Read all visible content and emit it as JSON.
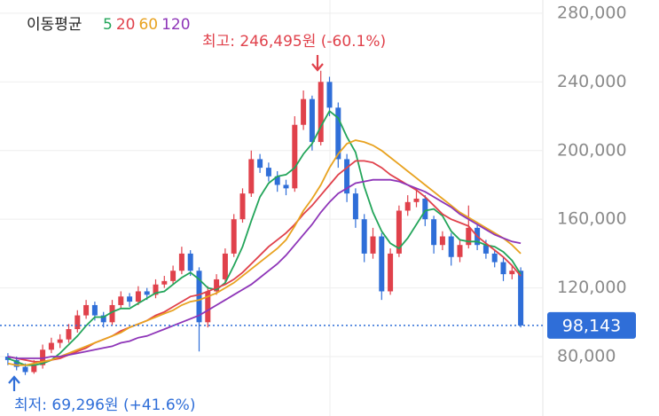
{
  "chart_data": {
    "type": "candlestick",
    "legend_title": "이동평균",
    "ylim": [
      45400,
      287700
    ],
    "yticks": [
      {
        "value": 80000,
        "label": "80,000"
      },
      {
        "value": 120000,
        "label": "120,000"
      },
      {
        "value": 160000,
        "label": "160,000"
      },
      {
        "value": 200000,
        "label": "200,000"
      },
      {
        "value": 240000,
        "label": "240,000"
      },
      {
        "value": 280000,
        "label": "280,000"
      }
    ],
    "grid": true,
    "up_color": "#e0414b",
    "down_color": "#2f6ed8",
    "open": [
      80000,
      78000,
      74000,
      71000,
      75000,
      84000,
      88000,
      90000,
      96000,
      104000,
      110000,
      104000,
      100000,
      110000,
      115000,
      112000,
      118000,
      116000,
      122000,
      124000,
      130000,
      140000,
      130000,
      100000,
      118000,
      125000,
      140000,
      160000,
      175000,
      195000,
      190000,
      185000,
      180000,
      178000,
      215000,
      230000,
      205000,
      240000,
      225000,
      195000,
      175000,
      160000,
      140000,
      150000,
      118000,
      140000,
      165000,
      170000,
      172000,
      160000,
      145000,
      150000,
      138000,
      145000,
      155000,
      145000,
      140000,
      135000,
      128000,
      130000
    ],
    "high": [
      82000,
      80000,
      76000,
      78000,
      87000,
      91000,
      93000,
      99000,
      107000,
      113000,
      112000,
      106000,
      113000,
      118000,
      117000,
      121000,
      120000,
      125000,
      127000,
      133000,
      144000,
      142000,
      132000,
      121000,
      128000,
      143000,
      163000,
      178000,
      200000,
      198000,
      193000,
      188000,
      183000,
      220000,
      235000,
      232000,
      246495,
      243000,
      228000,
      198000,
      178000,
      163000,
      155000,
      152000,
      143000,
      168000,
      174000,
      178000,
      174000,
      162000,
      153000,
      152000,
      148000,
      168000,
      157000,
      148000,
      142000,
      138000,
      133000,
      132000
    ],
    "low": [
      75000,
      72000,
      69296,
      70000,
      73000,
      82000,
      85000,
      88000,
      94000,
      102000,
      101000,
      97000,
      98000,
      108000,
      109000,
      110000,
      113000,
      114000,
      120000,
      122000,
      128000,
      127000,
      83000,
      97000,
      116000,
      123000,
      138000,
      158000,
      173000,
      187000,
      182000,
      176000,
      174000,
      176000,
      212000,
      200000,
      203000,
      220000,
      190000,
      170000,
      155000,
      135000,
      137000,
      113000,
      116000,
      138000,
      162000,
      167000,
      156000,
      140000,
      142000,
      133000,
      135000,
      143000,
      142000,
      137000,
      132000,
      124000,
      125000,
      97000
    ],
    "close": [
      78000,
      74000,
      71000,
      75000,
      84000,
      88000,
      90000,
      96000,
      104000,
      110000,
      104000,
      100000,
      110000,
      115000,
      112000,
      118000,
      116000,
      122000,
      124000,
      130000,
      140000,
      130000,
      100000,
      118000,
      125000,
      140000,
      160000,
      175000,
      195000,
      190000,
      185000,
      180000,
      178000,
      215000,
      230000,
      205000,
      240000,
      225000,
      195000,
      175000,
      160000,
      140000,
      150000,
      118000,
      140000,
      165000,
      170000,
      172000,
      160000,
      145000,
      150000,
      138000,
      145000,
      155000,
      145000,
      140000,
      135000,
      128000,
      130000,
      98143
    ],
    "series": [
      {
        "name": "5",
        "color": "#23a55a",
        "values": [
          79000,
          77000,
          75000,
          75000,
          76000,
          78000,
          82000,
          87000,
          92000,
          98000,
          103000,
          103000,
          106000,
          108000,
          108000,
          111000,
          114000,
          117000,
          118000,
          122000,
          126000,
          129000,
          125000,
          120000,
          119000,
          123000,
          133000,
          144000,
          159000,
          173000,
          181000,
          185000,
          186000,
          190000,
          198000,
          204000,
          214000,
          223000,
          219000,
          208000,
          199000,
          179000,
          164000,
          153000,
          146000,
          143000,
          149000,
          157000,
          165000,
          166000,
          162000,
          153000,
          148000,
          147000,
          147000,
          145000,
          144000,
          141000,
          136000,
          128000
        ]
      },
      {
        "name": "20",
        "color": "#e0414b",
        "values": [
          80000,
          79000,
          78000,
          77000,
          77000,
          78000,
          79000,
          81000,
          83000,
          85000,
          88000,
          90000,
          92000,
          95000,
          97000,
          99000,
          101000,
          104000,
          106000,
          109000,
          112000,
          115000,
          116000,
          118000,
          120000,
          122000,
          125000,
          129000,
          134000,
          139000,
          144000,
          148000,
          152000,
          157000,
          163000,
          168000,
          174000,
          180000,
          186000,
          190000,
          194000,
          194000,
          193000,
          190000,
          186000,
          183000,
          180000,
          177000,
          173000,
          168000,
          163000,
          160000,
          158000,
          156000,
          150000,
          146000,
          142000,
          138000,
          133000,
          127000
        ]
      },
      {
        "name": "60",
        "color": "#e8a21f",
        "values": [
          76000,
          75000,
          75000,
          76000,
          77000,
          78000,
          80000,
          82000,
          84000,
          86000,
          88000,
          90000,
          92000,
          94000,
          97000,
          99000,
          101000,
          103000,
          105000,
          107000,
          110000,
          112000,
          113000,
          115000,
          117000,
          120000,
          123000,
          127000,
          131000,
          135000,
          139000,
          143000,
          148000,
          156000,
          165000,
          172000,
          180000,
          190000,
          198000,
          204000,
          206000,
          205000,
          203000,
          200000,
          196000,
          192000,
          188000,
          184000,
          180000,
          176000,
          172000,
          168000,
          164000,
          161000,
          158000,
          155000,
          152000,
          149000,
          145000,
          140000
        ]
      },
      {
        "name": "120",
        "color": "#8e35b8",
        "values": [
          80000,
          79000,
          79000,
          79000,
          79000,
          80000,
          80000,
          81000,
          82000,
          83000,
          84000,
          85000,
          86000,
          88000,
          89000,
          91000,
          92000,
          94000,
          96000,
          98000,
          100000,
          102000,
          104000,
          107000,
          110000,
          113000,
          116000,
          119000,
          122000,
          126000,
          130000,
          134000,
          139000,
          145000,
          151000,
          157000,
          164000,
          170000,
          175000,
          178000,
          181000,
          182000,
          183000,
          183000,
          183000,
          182000,
          180000,
          178000,
          176000,
          173000,
          170000,
          167000,
          163000,
          160000,
          157000,
          154000,
          151000,
          149000,
          147000,
          146000
        ]
      }
    ],
    "high_annotation": "최고: 246,495원 (-60.1%)",
    "low_annotation": "최저: 69,296원 (+41.6%)",
    "current_price": 98143,
    "current_price_label": "98,143"
  }
}
